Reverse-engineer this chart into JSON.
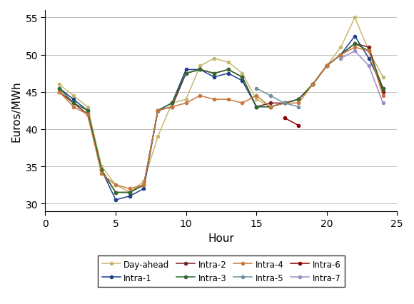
{
  "hours": [
    1,
    2,
    3,
    4,
    5,
    6,
    7,
    8,
    9,
    10,
    11,
    12,
    13,
    14,
    15,
    16,
    17,
    18,
    19,
    20,
    21,
    22,
    23,
    24
  ],
  "series": {
    "Day-ahead": [
      46.0,
      44.5,
      43.0,
      35.0,
      32.5,
      31.5,
      33.0,
      39.0,
      43.5,
      44.0,
      48.5,
      49.5,
      49.0,
      47.5,
      44.0,
      43.0,
      43.5,
      44.0,
      46.0,
      48.5,
      51.0,
      55.0,
      50.5,
      47.0
    ],
    "Intra-1": [
      45.5,
      44.0,
      42.5,
      34.5,
      30.5,
      31.0,
      32.0,
      42.5,
      43.5,
      48.0,
      48.0,
      47.0,
      47.5,
      46.5,
      43.0,
      43.0,
      43.5,
      44.0,
      46.0,
      48.5,
      50.0,
      52.5,
      49.5,
      45.5
    ],
    "Intra-2": [
      45.0,
      43.5,
      42.0,
      34.5,
      31.5,
      31.5,
      32.5,
      42.5,
      43.0,
      47.5,
      48.0,
      47.5,
      48.0,
      47.0,
      43.0,
      43.5,
      43.5,
      44.0,
      46.0,
      48.5,
      50.0,
      51.5,
      51.0,
      45.0
    ],
    "Intra-3": [
      45.5,
      43.5,
      42.5,
      34.5,
      31.5,
      31.5,
      32.5,
      42.5,
      43.5,
      47.5,
      48.0,
      47.5,
      48.0,
      47.0,
      43.0,
      43.0,
      43.5,
      44.0,
      46.0,
      48.5,
      50.0,
      51.5,
      50.5,
      45.5
    ],
    "Intra-4": [
      45.0,
      43.0,
      42.0,
      34.0,
      32.5,
      32.0,
      32.5,
      42.5,
      43.0,
      43.5,
      44.5,
      44.0,
      44.0,
      43.5,
      44.5,
      43.0,
      43.5,
      43.5,
      46.0,
      48.5,
      50.0,
      51.0,
      50.5,
      44.5
    ],
    "Intra-5": [
      null,
      null,
      null,
      null,
      null,
      null,
      null,
      null,
      null,
      null,
      null,
      null,
      null,
      null,
      45.5,
      44.5,
      43.5,
      43.0,
      null,
      null,
      null,
      null,
      null,
      null
    ],
    "Intra-6": [
      null,
      null,
      null,
      null,
      null,
      null,
      null,
      null,
      null,
      null,
      null,
      null,
      null,
      null,
      null,
      null,
      41.5,
      40.5,
      null,
      null,
      null,
      null,
      null,
      null
    ],
    "Intra-7": [
      null,
      null,
      null,
      null,
      null,
      null,
      null,
      null,
      null,
      null,
      null,
      null,
      null,
      null,
      null,
      null,
      null,
      null,
      null,
      null,
      49.5,
      50.5,
      48.5,
      43.5
    ]
  },
  "colors": {
    "Day-ahead": "#c8b86e",
    "Intra-1": "#1c3e8c",
    "Intra-2": "#7a2020",
    "Intra-3": "#2e6b2e",
    "Intra-4": "#c8783c",
    "Intra-5": "#7090a0",
    "Intra-6": "#8b0000",
    "Intra-7": "#9b8ec4"
  },
  "xlabel": "Hour",
  "ylabel": "Euros/MWh",
  "xlim": [
    0,
    25
  ],
  "ylim": [
    29,
    56
  ],
  "yticks": [
    30,
    35,
    40,
    45,
    50,
    55
  ],
  "xticks": [
    0,
    5,
    10,
    15,
    20,
    25
  ],
  "background_color": "#ffffff",
  "grid_color": "#c0c0c0",
  "legend_order_row1": [
    "Day-ahead",
    "Intra-1",
    "Intra-2",
    "Intra-3"
  ],
  "legend_order_row2": [
    "Intra-4",
    "Intra-5",
    "Intra-6",
    "Intra-7"
  ]
}
